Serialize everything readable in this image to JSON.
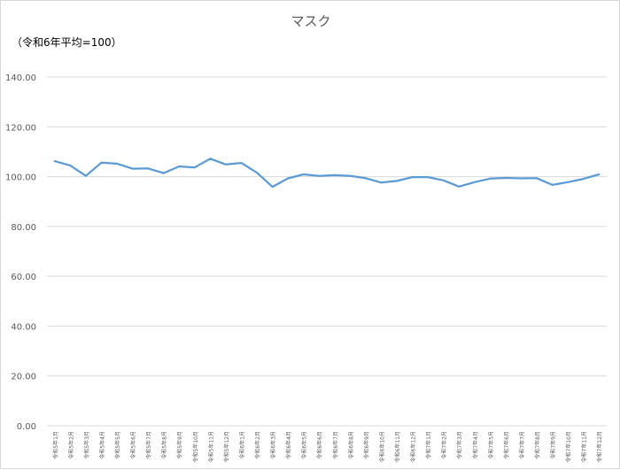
{
  "chart_data": {
    "type": "line",
    "title": "マスク",
    "unit_label": "（令和6年平均=100）",
    "xlabel": "",
    "ylabel": "",
    "ylim": [
      0,
      140
    ],
    "y_ticks": [
      "0.00",
      "20.00",
      "40.00",
      "60.00",
      "80.00",
      "100.00",
      "120.00",
      "140.00"
    ],
    "grid": true,
    "legend": "none",
    "line_color": "#5b9bd5",
    "grid_color": "#d9d9d9",
    "categories": [
      "令和5年1月",
      "令和5年2月",
      "令和5年3月",
      "令和5年4月",
      "令和5年5月",
      "令和5年6月",
      "令和5年7月",
      "令和5年8月",
      "令和5年9月",
      "令和5年10月",
      "令和5年11月",
      "令和5年12月",
      "令和6年1月",
      "令和6年2月",
      "令和6年3月",
      "令和6年4月",
      "令和6年5月",
      "令和6年6月",
      "令和6年7月",
      "令和6年8月",
      "令和6年9月",
      "令和6年10月",
      "令和6年11月",
      "令和6年12月",
      "令和7年1月",
      "令和7年2月",
      "令和7年3月",
      "令和7年4月",
      "令和7年5月",
      "令和7年6月",
      "令和7年7月",
      "令和7年8月",
      "令和7年9月",
      "令和7年10月",
      "令和7年11月",
      "令和7年12月"
    ],
    "values": [
      106.2,
      104.5,
      100.3,
      105.6,
      105.2,
      103.2,
      103.3,
      101.4,
      104.1,
      103.7,
      107.2,
      104.9,
      105.5,
      101.6,
      95.9,
      99.3,
      100.9,
      100.3,
      100.6,
      100.3,
      99.4,
      97.6,
      98.3,
      99.8,
      99.8,
      98.5,
      96.0,
      97.8,
      99.2,
      99.5,
      99.3,
      99.4,
      96.7,
      97.8,
      99.1,
      100.9
    ]
  }
}
